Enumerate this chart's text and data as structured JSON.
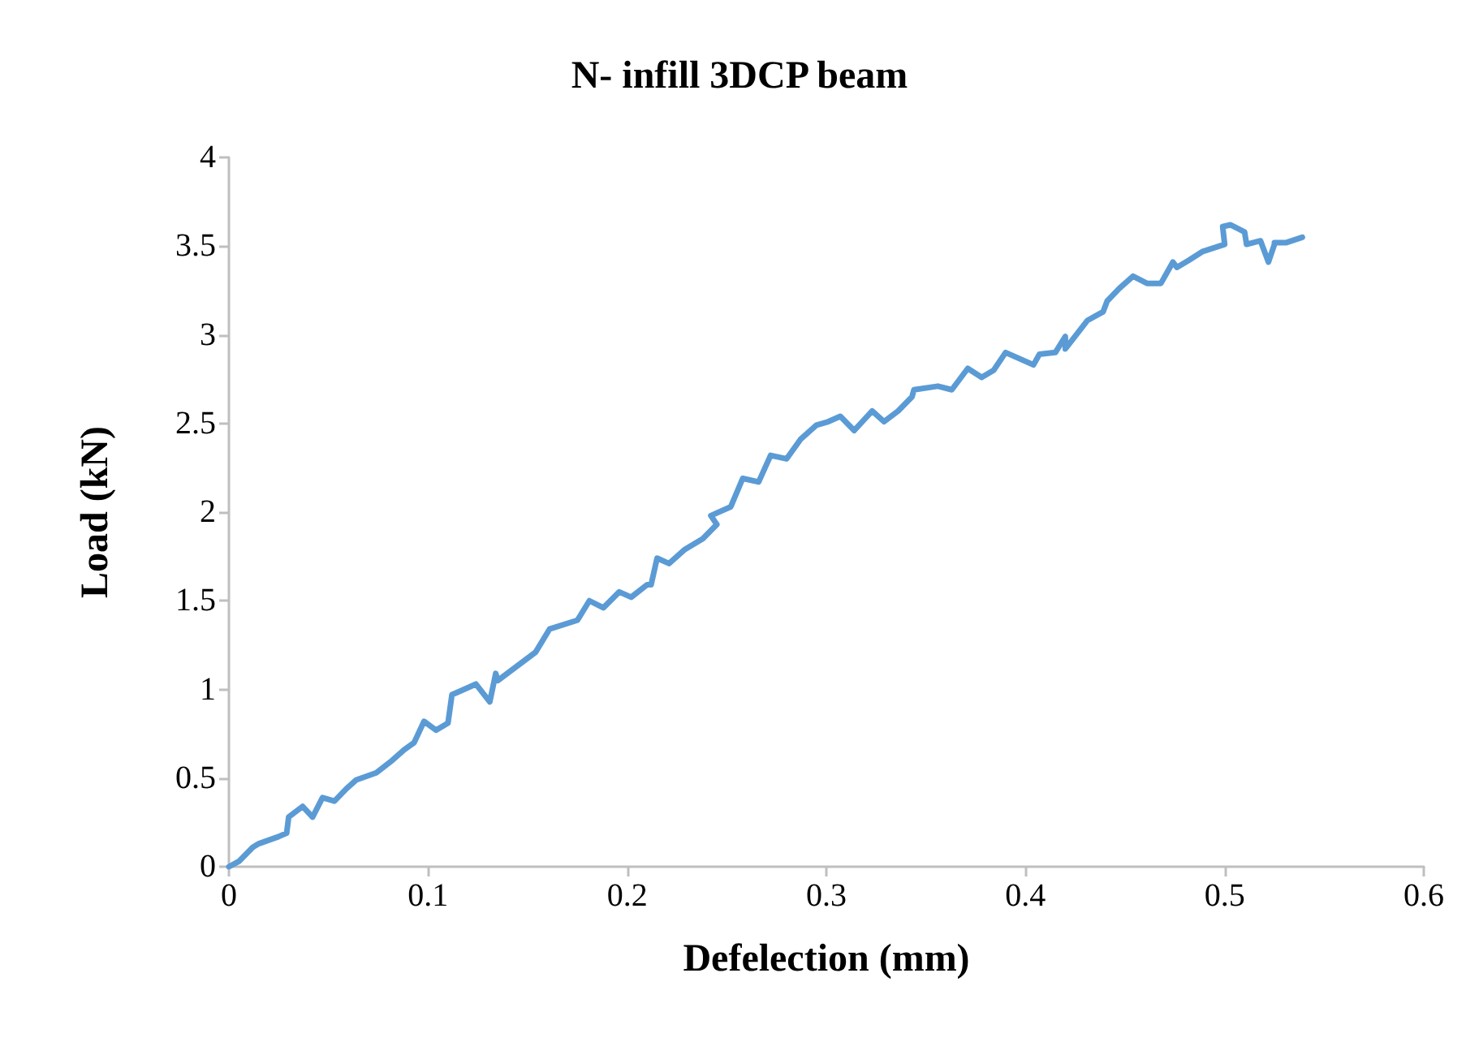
{
  "chart_data": {
    "type": "line",
    "title": "N- infill 3DCP beam",
    "xlabel": "Defelection (mm)",
    "ylabel": "Load (kN)",
    "xlim": [
      0,
      0.6
    ],
    "xticks": [
      0,
      0.1,
      0.2,
      0.3,
      0.4,
      0.5,
      0.6
    ],
    "ylim": [
      0,
      4
    ],
    "yticks": [
      0,
      0.5,
      1,
      1.5,
      2,
      2.5,
      3,
      3.5,
      4
    ],
    "grid": false,
    "marker": "none",
    "line_style": "solid",
    "series": [
      {
        "color": "#5b9bd5",
        "x": [
          0,
          0.005,
          0.012,
          0.015,
          0.025,
          0.029,
          0.03,
          0.037,
          0.042,
          0.047,
          0.053,
          0.059,
          0.064,
          0.074,
          0.082,
          0.088,
          0.093,
          0.098,
          0.104,
          0.11,
          0.112,
          0.116,
          0.124,
          0.131,
          0.134,
          0.135,
          0.154,
          0.161,
          0.175,
          0.181,
          0.188,
          0.196,
          0.202,
          0.21,
          0.212,
          0.215,
          0.221,
          0.229,
          0.238,
          0.245,
          0.242,
          0.252,
          0.258,
          0.266,
          0.272,
          0.28,
          0.287,
          0.295,
          0.301,
          0.307,
          0.314,
          0.323,
          0.329,
          0.336,
          0.343,
          0.344,
          0.356,
          0.363,
          0.371,
          0.378,
          0.384,
          0.39,
          0.404,
          0.407,
          0.415,
          0.42,
          0.42,
          0.431,
          0.439,
          0.441,
          0.447,
          0.454,
          0.461,
          0.468,
          0.474,
          0.476,
          0.482,
          0.489,
          0.5,
          0.499,
          0.503,
          0.51,
          0.511,
          0.518,
          0.522,
          0.525,
          0.525,
          0.531,
          0.539
        ],
        "values": [
          0,
          0.03,
          0.11,
          0.13,
          0.17,
          0.19,
          0.28,
          0.34,
          0.28,
          0.39,
          0.37,
          0.44,
          0.49,
          0.53,
          0.6,
          0.66,
          0.7,
          0.82,
          0.77,
          0.81,
          0.97,
          0.99,
          1.03,
          0.93,
          1.09,
          1.05,
          1.21,
          1.34,
          1.39,
          1.5,
          1.46,
          1.55,
          1.52,
          1.59,
          1.59,
          1.74,
          1.71,
          1.79,
          1.85,
          1.93,
          1.98,
          2.03,
          2.19,
          2.17,
          2.32,
          2.3,
          2.41,
          2.49,
          2.51,
          2.54,
          2.46,
          2.57,
          2.51,
          2.57,
          2.65,
          2.69,
          2.71,
          2.69,
          2.81,
          2.76,
          2.8,
          2.9,
          2.83,
          2.89,
          2.9,
          2.99,
          2.92,
          3.08,
          3.13,
          3.19,
          3.26,
          3.33,
          3.29,
          3.29,
          3.41,
          3.38,
          3.42,
          3.47,
          3.51,
          3.61,
          3.62,
          3.58,
          3.51,
          3.53,
          3.41,
          3.51,
          3.52,
          3.52,
          3.55
        ]
      }
    ]
  }
}
